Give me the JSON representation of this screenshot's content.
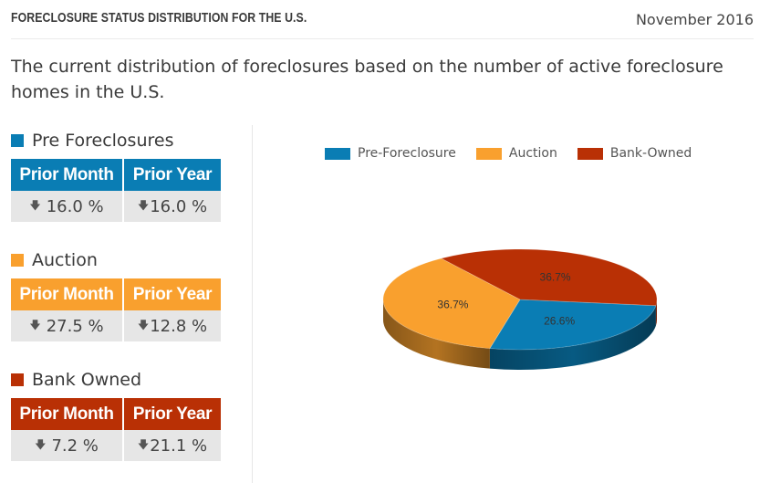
{
  "header": {
    "title": "FORECLOSURE STATUS DISTRIBUTION FOR THE U.S.",
    "date": "November 2016"
  },
  "description": "The current distribution of foreclosures based on the number of active foreclosure homes in the U.S.",
  "colors": {
    "pre_foreclosure": "#0a7db4",
    "auction": "#f9a02e",
    "bank_owned": "#b93005"
  },
  "groups": {
    "pre": {
      "title": "Pre Foreclosures",
      "col1": "Prior Month",
      "col2": "Prior Year",
      "v1": "16.0 %",
      "v2": "16.0 %",
      "arrow_icon": "down-arrow-icon"
    },
    "auction": {
      "title": "Auction",
      "col1": "Prior Month",
      "col2": "Prior Year",
      "v1": "27.5 %",
      "v2": "12.8 %",
      "arrow_icon": "down-arrow-icon"
    },
    "bank": {
      "title": "Bank Owned",
      "col1": "Prior Month",
      "col2": "Prior Year",
      "v1": "7.2 %",
      "v2": "21.1 %",
      "arrow_icon": "down-arrow-icon"
    }
  },
  "chart_data": {
    "type": "pie",
    "legend_position": "top",
    "legend": [
      "Pre-Foreclosure",
      "Auction",
      "Bank-Owned"
    ],
    "slices": [
      {
        "name": "Pre-Foreclosure",
        "value": 26.6,
        "label": "26.6%",
        "color": "#0a7db4"
      },
      {
        "name": "Auction",
        "value": 36.7,
        "label": "36.7%",
        "color": "#f9a02e"
      },
      {
        "name": "Bank-Owned",
        "value": 36.7,
        "label": "36.7%",
        "color": "#b93005"
      }
    ]
  }
}
